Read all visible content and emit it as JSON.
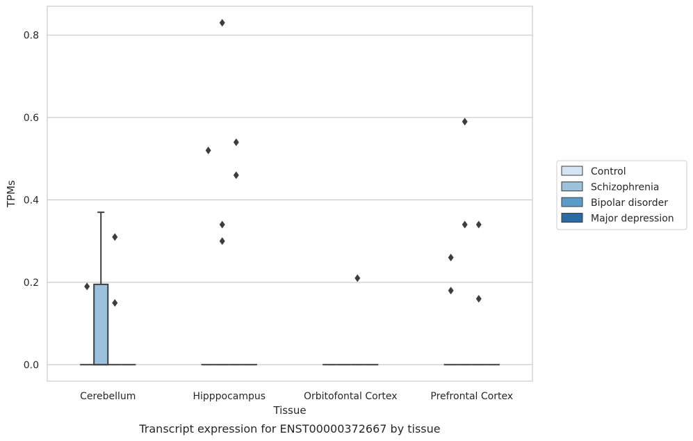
{
  "chart_data": {
    "type": "box",
    "title": "",
    "caption": "Transcript expression for ENST00000372667 by tissue",
    "xlabel": "Tissue",
    "ylabel": "TPMs",
    "ylim": [
      -0.04,
      0.87
    ],
    "yticks": [
      0.0,
      0.2,
      0.4,
      0.6,
      0.8
    ],
    "ytick_labels": [
      "0.0",
      "0.2",
      "0.4",
      "0.6",
      "0.8"
    ],
    "grid": "horizontal",
    "legend_position": "right",
    "categories": [
      "Cerebellum",
      "Hipppocampus",
      "Orbitofontal Cortex",
      "Prefrontal Cortex"
    ],
    "series": [
      {
        "name": "Control",
        "color": "#d4e4f2",
        "boxes": [
          {
            "category": "Cerebellum",
            "q1": 0,
            "median": 0,
            "q3": 0,
            "whisker_low": 0,
            "whisker_high": 0,
            "outliers": [
              0.19
            ]
          },
          {
            "category": "Hipppocampus",
            "q1": 0,
            "median": 0,
            "q3": 0,
            "whisker_low": 0,
            "whisker_high": 0,
            "outliers": [
              0.52
            ]
          },
          {
            "category": "Orbitofontal Cortex",
            "q1": 0,
            "median": 0,
            "q3": 0,
            "whisker_low": 0,
            "whisker_high": 0,
            "outliers": []
          },
          {
            "category": "Prefrontal Cortex",
            "q1": 0,
            "median": 0,
            "q3": 0,
            "whisker_low": 0,
            "whisker_high": 0,
            "outliers": [
              0.26,
              0.18
            ]
          }
        ]
      },
      {
        "name": "Schizophrenia",
        "color": "#9bc1dc",
        "boxes": [
          {
            "category": "Cerebellum",
            "q1": 0,
            "median": 0,
            "q3": 0.195,
            "whisker_low": 0,
            "whisker_high": 0.37,
            "outliers": []
          },
          {
            "category": "Hipppocampus",
            "q1": 0,
            "median": 0,
            "q3": 0,
            "whisker_low": 0,
            "whisker_high": 0,
            "outliers": [
              0.83,
              0.34,
              0.3
            ]
          },
          {
            "category": "Orbitofontal Cortex",
            "q1": 0,
            "median": 0,
            "q3": 0,
            "whisker_low": 0,
            "whisker_high": 0,
            "outliers": []
          },
          {
            "category": "Prefrontal Cortex",
            "q1": 0,
            "median": 0,
            "q3": 0,
            "whisker_low": 0,
            "whisker_high": 0,
            "outliers": [
              0.59,
              0.34
            ]
          }
        ]
      },
      {
        "name": "Bipolar disorder",
        "color": "#5a9bc9",
        "boxes": [
          {
            "category": "Cerebellum",
            "q1": 0,
            "median": 0,
            "q3": 0,
            "whisker_low": 0,
            "whisker_high": 0,
            "outliers": [
              0.31,
              0.15
            ]
          },
          {
            "category": "Hipppocampus",
            "q1": 0,
            "median": 0,
            "q3": 0,
            "whisker_low": 0,
            "whisker_high": 0,
            "outliers": [
              0.54,
              0.46
            ]
          },
          {
            "category": "Orbitofontal Cortex",
            "q1": 0,
            "median": 0,
            "q3": 0,
            "whisker_low": 0,
            "whisker_high": 0,
            "outliers": [
              0.21
            ]
          },
          {
            "category": "Prefrontal Cortex",
            "q1": 0,
            "median": 0,
            "q3": 0,
            "whisker_low": 0,
            "whisker_high": 0,
            "outliers": [
              0.34,
              0.16
            ]
          }
        ]
      },
      {
        "name": "Major depression",
        "color": "#2b6ba5",
        "boxes": [
          {
            "category": "Cerebellum",
            "q1": 0,
            "median": 0,
            "q3": 0,
            "whisker_low": 0,
            "whisker_high": 0,
            "outliers": []
          },
          {
            "category": "Hipppocampus",
            "q1": 0,
            "median": 0,
            "q3": 0,
            "whisker_low": 0,
            "whisker_high": 0,
            "outliers": []
          },
          {
            "category": "Orbitofontal Cortex",
            "q1": 0,
            "median": 0,
            "q3": 0,
            "whisker_low": 0,
            "whisker_high": 0,
            "outliers": []
          },
          {
            "category": "Prefrontal Cortex",
            "q1": 0,
            "median": 0,
            "q3": 0,
            "whisker_low": 0,
            "whisker_high": 0,
            "outliers": []
          }
        ]
      }
    ]
  }
}
